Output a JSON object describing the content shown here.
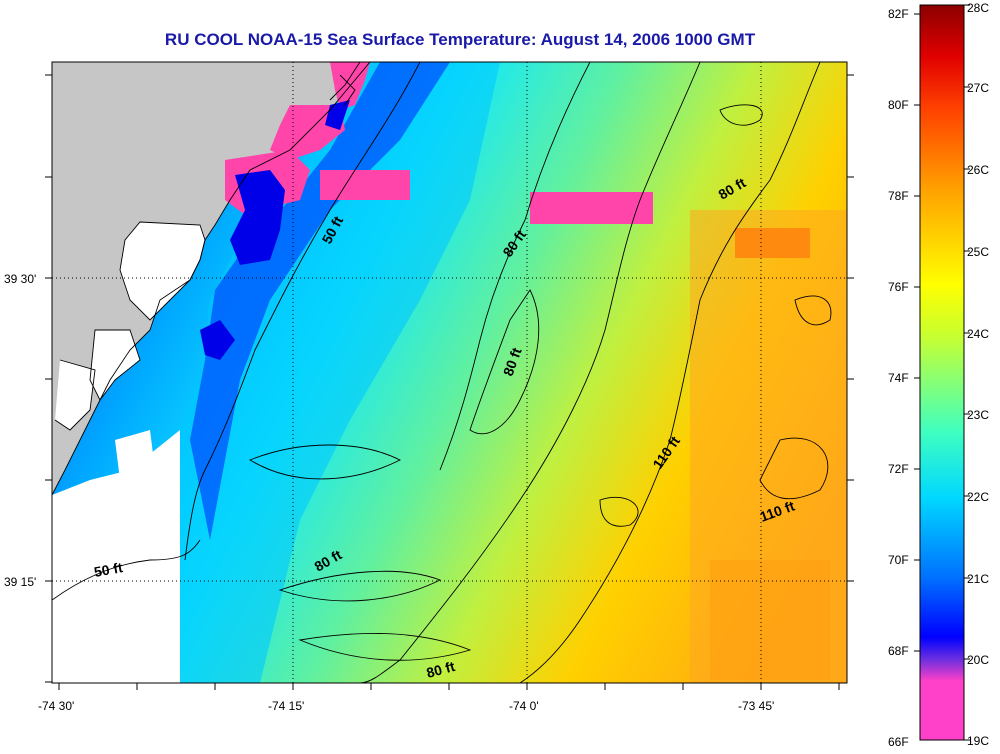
{
  "title": "RU COOL  NOAA-15  Sea Surface Temperature:  August 14, 2006 1000 GMT",
  "map": {
    "lon_ticks": [
      "-74 30'",
      "-74 15'",
      "-74 0'",
      "-73 45'"
    ],
    "lat_ticks": [
      "39 30'",
      "39 15'"
    ],
    "depth_labels": [
      "50 ft",
      "80 ft",
      "80 ft",
      "80 ft",
      "80 ft",
      "80 ft",
      "110 ft",
      "110 ft",
      "50 ft"
    ]
  },
  "colorbar": {
    "fahrenheit": [
      "82F",
      "80F",
      "78F",
      "76F",
      "74F",
      "72F",
      "70F",
      "68F",
      "66F"
    ],
    "celsius": [
      "28C",
      "27C",
      "26C",
      "25C",
      "24C",
      "23C",
      "22C",
      "21C",
      "20C",
      "19C"
    ],
    "range_c": [
      19,
      28
    ],
    "stops": [
      "#ff40c8",
      "#8a2ad8",
      "#0000ff",
      "#0078ff",
      "#00e8ff",
      "#60ffa0",
      "#f0ff00",
      "#ffa000",
      "#ff2000",
      "#960000"
    ]
  },
  "colors": {
    "land": "#c6c6c6",
    "no_data": "#ffffff",
    "cloud_flag": "#ff44aa"
  }
}
